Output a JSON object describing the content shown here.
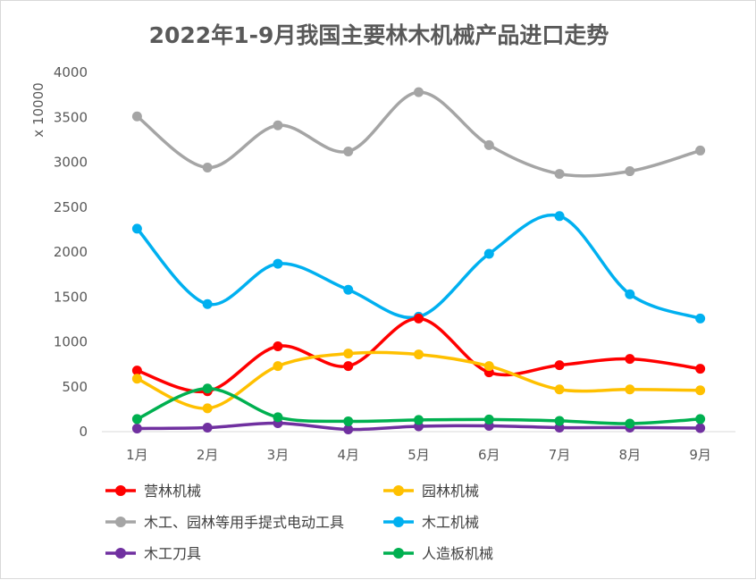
{
  "chart_data": {
    "type": "line",
    "title": "2022年1-9月我国主要林木机械产品进口走势",
    "ylabel": "x 10000",
    "ylim": [
      0,
      4000
    ],
    "yticks": [
      0,
      500,
      1000,
      1500,
      2000,
      2500,
      3000,
      3500,
      4000
    ],
    "grid": false,
    "legend_position": "bottom",
    "categories": [
      "1月",
      "2月",
      "3月",
      "4月",
      "5月",
      "6月",
      "7月",
      "8月",
      "9月"
    ],
    "series": [
      {
        "name": "营林机械",
        "color": "#ff0000",
        "values": [
          680,
          450,
          950,
          730,
          1260,
          660,
          740,
          810,
          700
        ]
      },
      {
        "name": "园林机械",
        "color": "#ffc000",
        "values": [
          590,
          260,
          730,
          870,
          860,
          730,
          470,
          470,
          460
        ]
      },
      {
        "name": "木工、园林等用手提式电动工具",
        "color": "#a5a5a5",
        "values": [
          3510,
          2940,
          3410,
          3120,
          3780,
          3190,
          2870,
          2900,
          3130
        ]
      },
      {
        "name": "木工机械",
        "color": "#00b0f0",
        "values": [
          2260,
          1420,
          1870,
          1580,
          1280,
          1980,
          2400,
          1530,
          1260
        ]
      },
      {
        "name": "木工刀具",
        "color": "#7030a0",
        "values": [
          35,
          45,
          95,
          25,
          60,
          65,
          45,
          45,
          40
        ]
      },
      {
        "name": "人造板机械",
        "color": "#00b050",
        "values": [
          140,
          480,
          160,
          115,
          130,
          135,
          120,
          90,
          140
        ]
      }
    ]
  }
}
